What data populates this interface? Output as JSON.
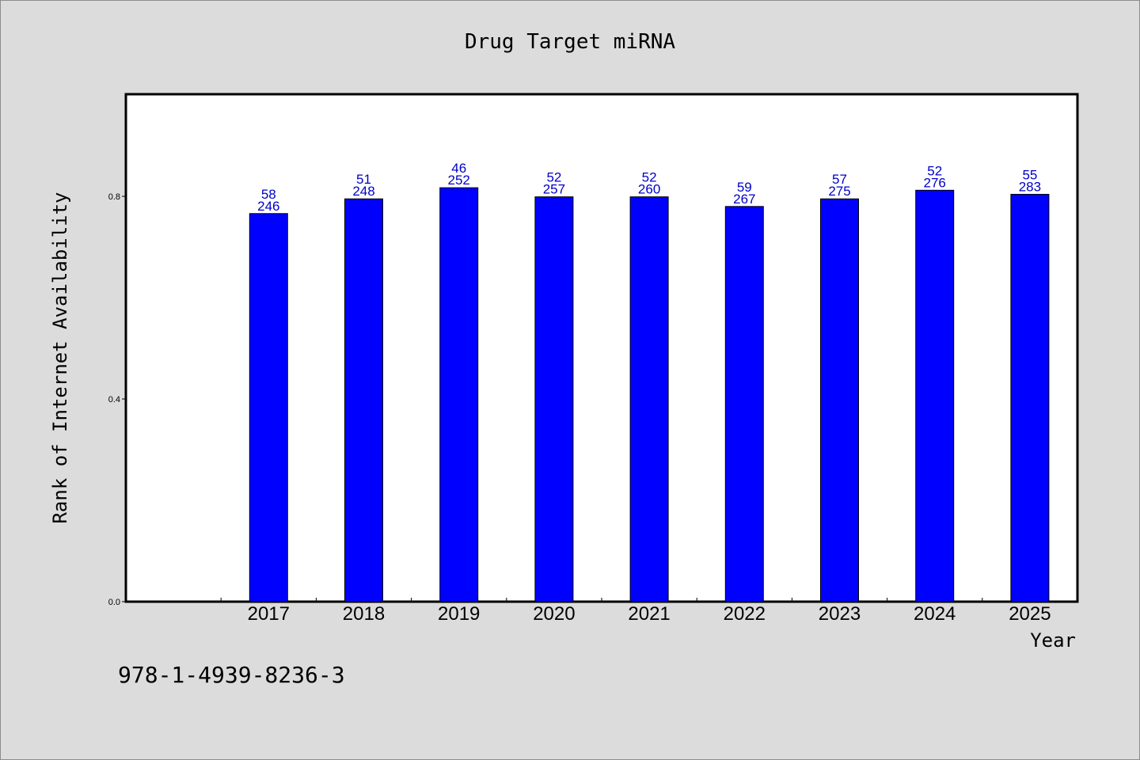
{
  "chart_data": {
    "type": "bar",
    "title": "Drug Target miRNA",
    "xlabel": "Year",
    "ylabel": "Rank of Internet Availability",
    "categories": [
      "2017",
      "2018",
      "2019",
      "2020",
      "2021",
      "2022",
      "2023",
      "2024",
      "2025"
    ],
    "values": [
      0.766,
      0.795,
      0.817,
      0.799,
      0.799,
      0.78,
      0.795,
      0.812,
      0.804
    ],
    "bar_labels_top": [
      "58",
      "51",
      "46",
      "52",
      "52",
      "59",
      "57",
      "52",
      "55"
    ],
    "bar_labels_bottom": [
      "246",
      "248",
      "252",
      "257",
      "260",
      "267",
      "275",
      "276",
      "283"
    ],
    "yticks": [
      0.0,
      0.4,
      0.8
    ],
    "ytick_labels": [
      "0.0",
      "0.4",
      "0.8"
    ],
    "ylim": [
      0,
      1.0
    ],
    "x_slot_count": 10,
    "grid": false,
    "bar_color": "#0000ff",
    "label_color": "#0000c8"
  },
  "footer": {
    "isbn": "978-1-4939-8236-3"
  }
}
